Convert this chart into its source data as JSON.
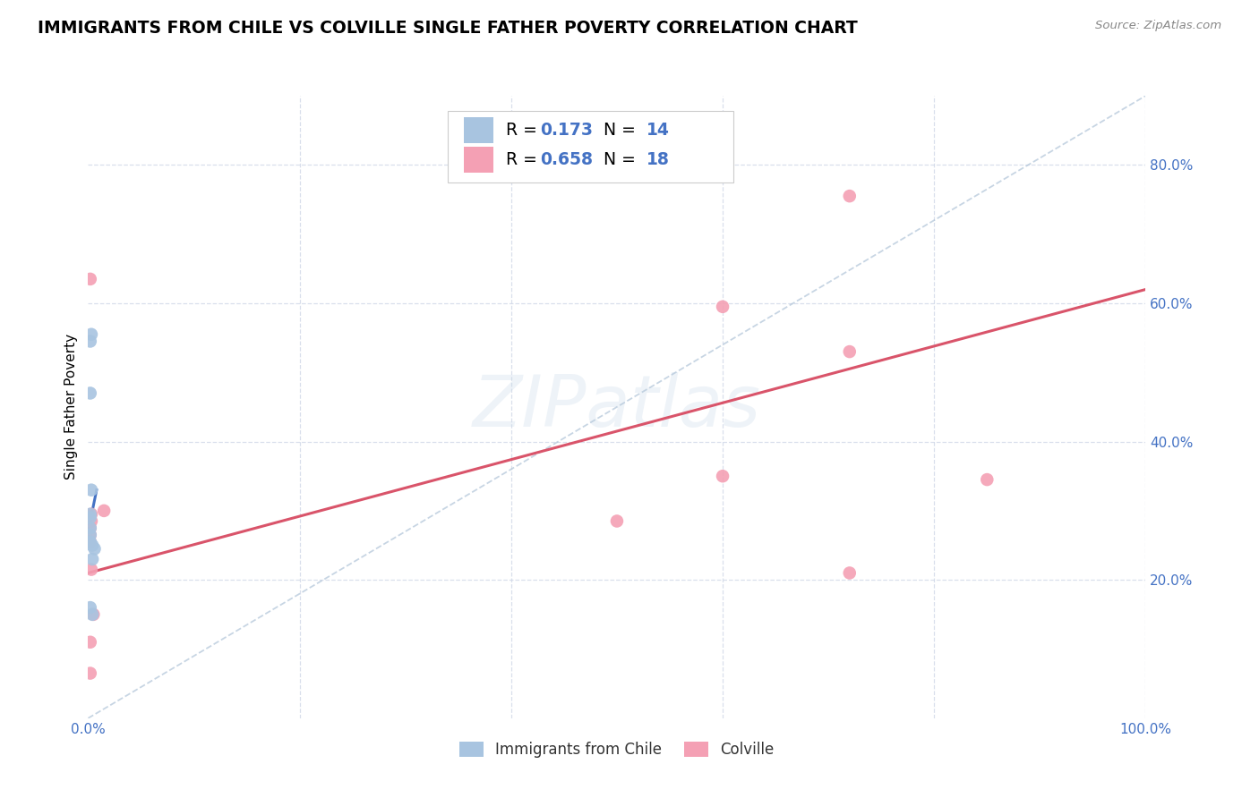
{
  "title": "IMMIGRANTS FROM CHILE VS COLVILLE SINGLE FATHER POVERTY CORRELATION CHART",
  "source": "Source: ZipAtlas.com",
  "ylabel": "Single Father Poverty",
  "xlim": [
    0.0,
    1.0
  ],
  "ylim": [
    0.0,
    0.9
  ],
  "watermark": "ZIPatlas",
  "series1_color": "#a8c4e0",
  "series2_color": "#f4a0b4",
  "trendline1_color": "#4472c4",
  "trendline2_color": "#d9546a",
  "dashed_line_color": "#b0c4d8",
  "legend_R1": "0.173",
  "legend_N1": "14",
  "legend_R2": "0.658",
  "legend_N2": "18",
  "legend_label1": "Immigrants from Chile",
  "legend_label2": "Colville",
  "blue_color": "#4472c4",
  "series1_x": [
    0.003,
    0.002,
    0.002,
    0.003,
    0.002,
    0.002,
    0.002,
    0.002,
    0.002,
    0.004,
    0.006,
    0.004,
    0.002,
    0.004
  ],
  "series1_y": [
    0.555,
    0.545,
    0.47,
    0.33,
    0.295,
    0.29,
    0.275,
    0.265,
    0.255,
    0.25,
    0.245,
    0.23,
    0.16,
    0.15
  ],
  "series2_x": [
    0.002,
    0.003,
    0.003,
    0.002,
    0.002,
    0.002,
    0.003,
    0.005,
    0.002,
    0.002,
    0.015,
    0.6,
    0.72,
    0.6,
    0.5,
    0.72,
    0.85,
    0.72
  ],
  "series2_y": [
    0.635,
    0.295,
    0.285,
    0.275,
    0.265,
    0.255,
    0.215,
    0.15,
    0.11,
    0.065,
    0.3,
    0.595,
    0.53,
    0.35,
    0.285,
    0.755,
    0.345,
    0.21
  ],
  "trendline2_x": [
    0.0,
    1.0
  ],
  "trendline2_y": [
    0.21,
    0.62
  ],
  "trendline1_x_start": 0.0,
  "trendline1_x_end": 0.008,
  "trendline1_y_start": 0.27,
  "trendline1_y_end": 0.33,
  "diag_line_x": [
    0.0,
    1.0
  ],
  "diag_line_y": [
    0.0,
    0.9
  ],
  "marker_size": 110,
  "title_fontsize": 13.5,
  "axis_fontsize": 11,
  "tick_fontsize": 11,
  "tick_color": "#4472c4",
  "background_color": "#ffffff",
  "grid_color": "#d0d8e8",
  "ytick_positions": [
    0.0,
    0.2,
    0.4,
    0.6,
    0.8
  ],
  "ytick_labels": [
    "",
    "20.0%",
    "40.0%",
    "60.0%",
    "80.0%"
  ]
}
